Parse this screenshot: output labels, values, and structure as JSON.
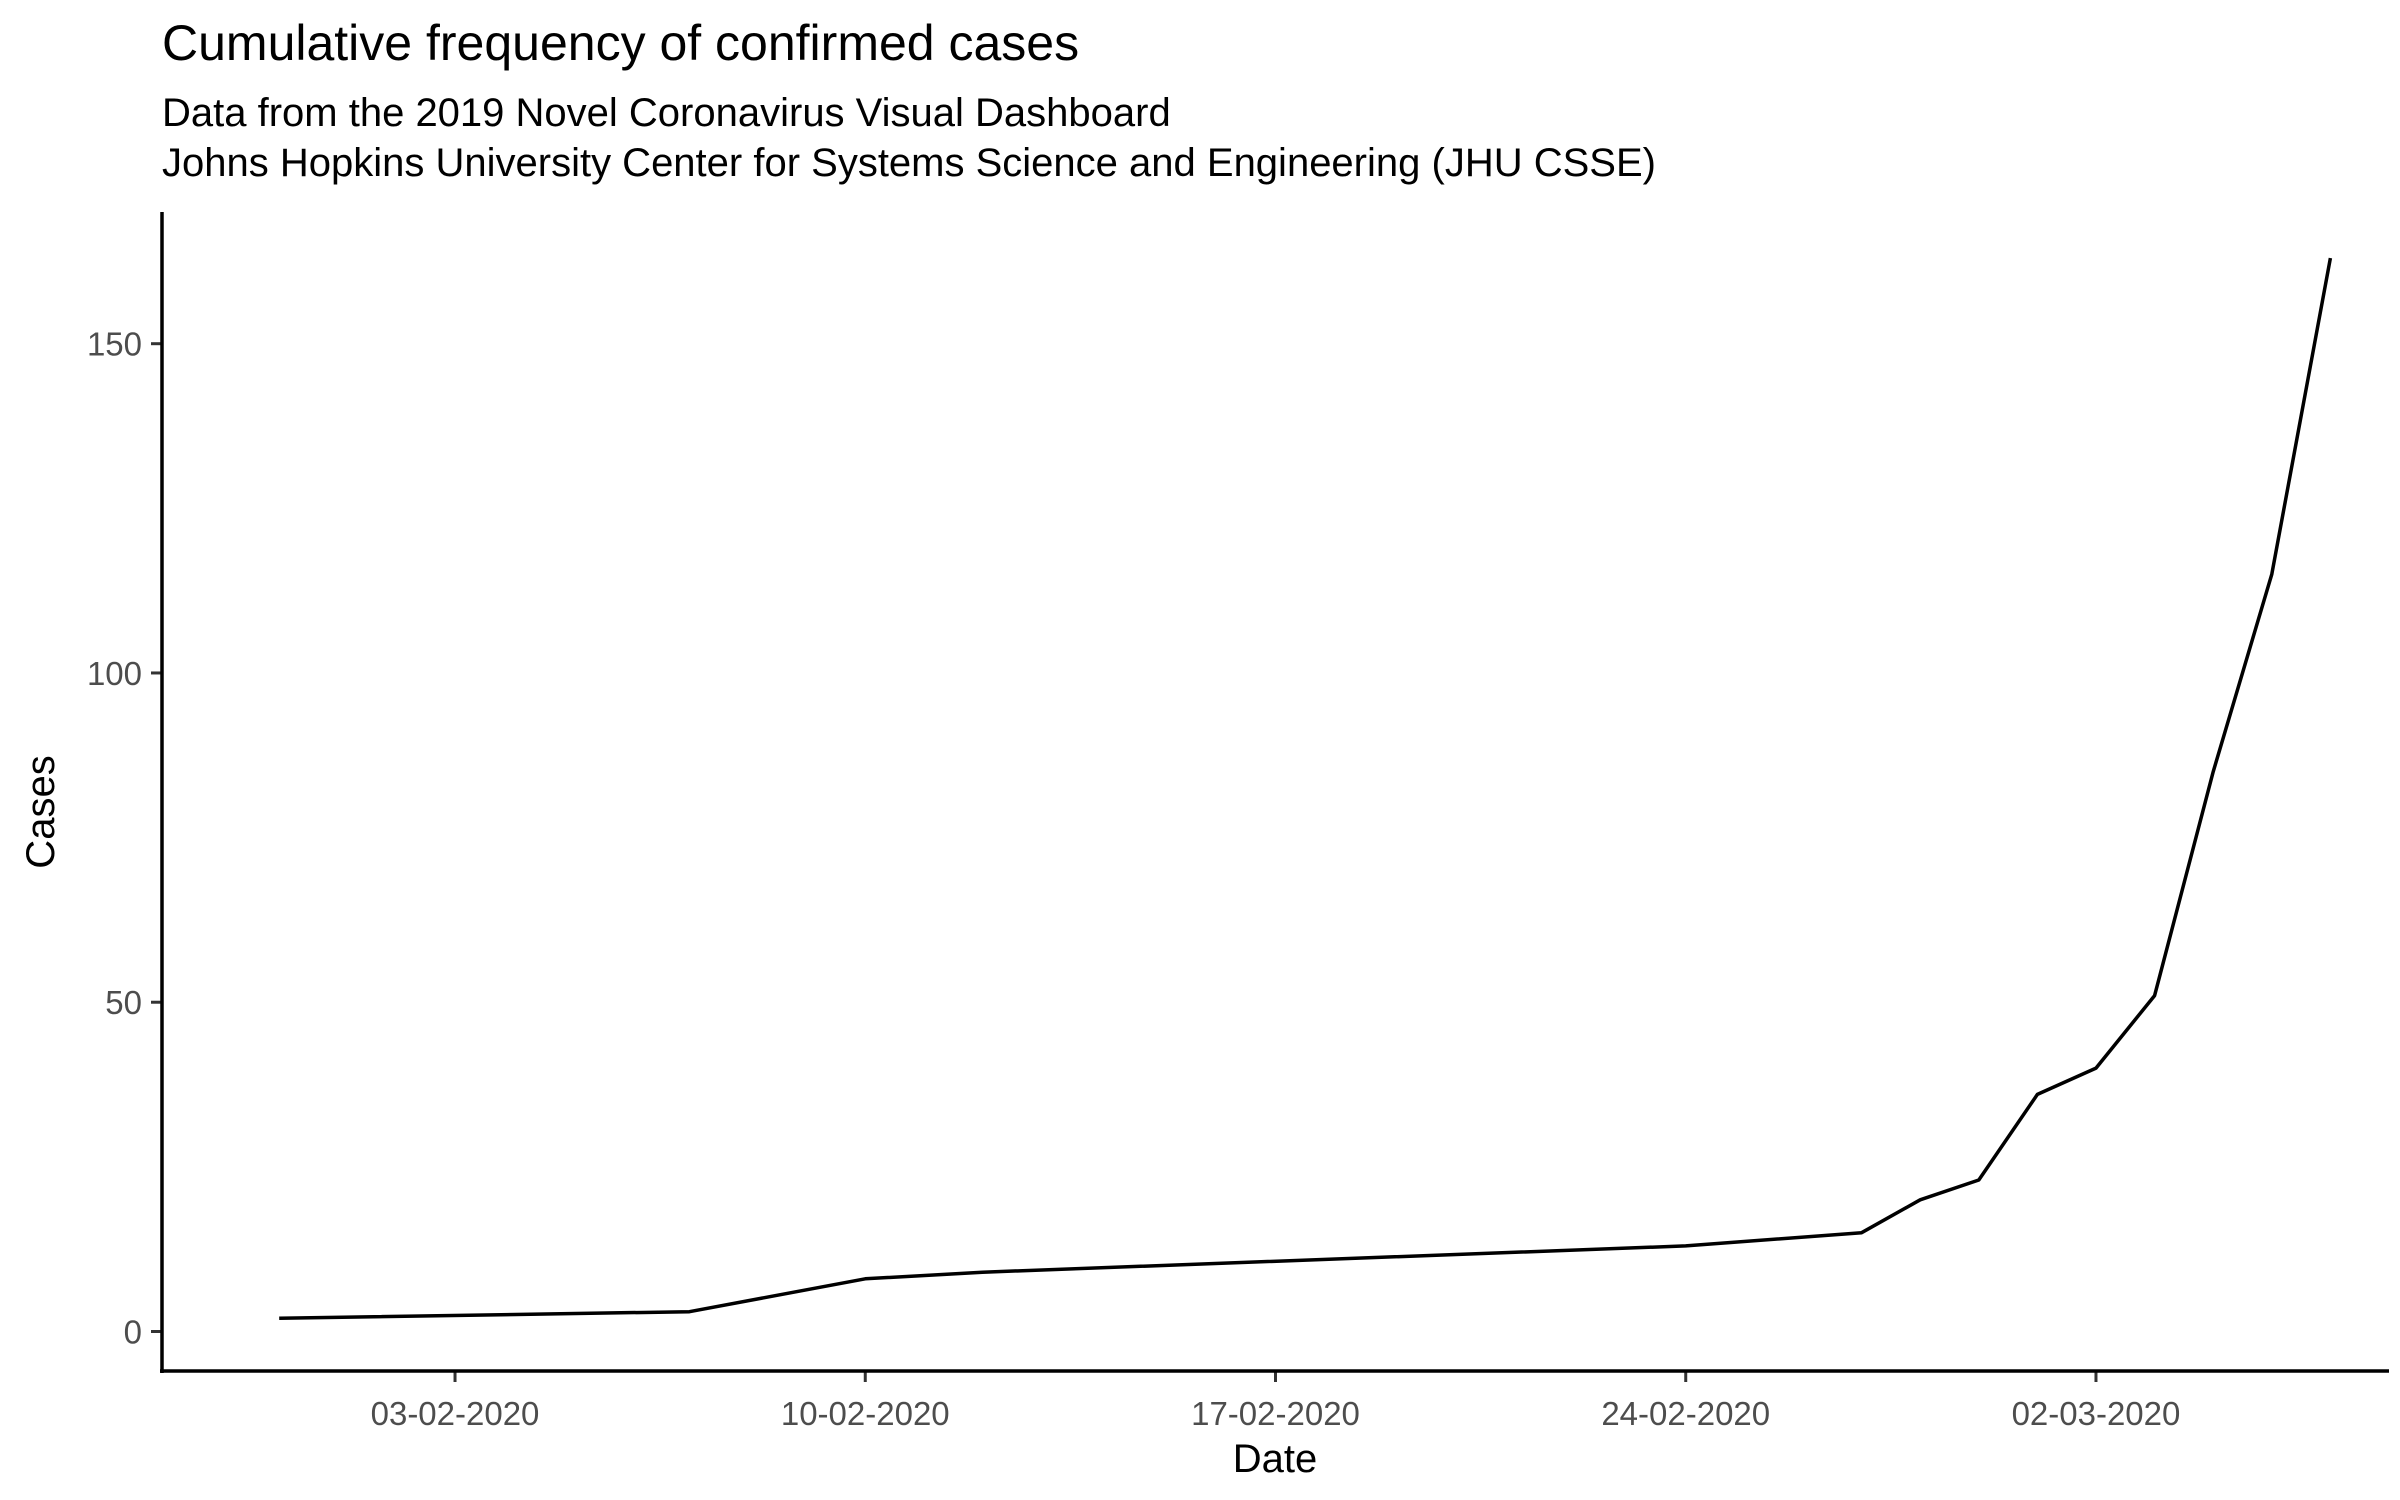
{
  "chart_data": {
    "type": "line",
    "title": "Cumulative frequency of confirmed cases",
    "subtitle": [
      "Data from the 2019 Novel Coronavirus Visual Dashboard",
      "Johns Hopkins University Center for Systems Science and Engineering (JHU CSSE)"
    ],
    "xlabel": "Date",
    "ylabel": "Cases",
    "xlim": [
      "2020-01-29",
      "2020-03-07"
    ],
    "ylim": [
      -6,
      170
    ],
    "x_ticks": [
      "2020-02-03",
      "2020-02-10",
      "2020-02-17",
      "2020-02-24",
      "2020-03-02"
    ],
    "x_tick_labels": [
      "03-02-2020",
      "10-02-2020",
      "17-02-2020",
      "24-02-2020",
      "02-03-2020"
    ],
    "y_ticks": [
      0,
      50,
      100,
      150
    ],
    "grid": false,
    "legend": "none",
    "series": [
      {
        "x": [
          "2020-01-31",
          "2020-02-07",
          "2020-02-10",
          "2020-02-12",
          "2020-02-24",
          "2020-02-27",
          "2020-02-28",
          "2020-02-29",
          "2020-03-01",
          "2020-03-02",
          "2020-03-03",
          "2020-03-04",
          "2020-03-05",
          "2020-03-06"
        ],
        "values": [
          2,
          3,
          8,
          9,
          13,
          15,
          20,
          23,
          36,
          40,
          51,
          85,
          115,
          163
        ],
        "color": "#000000"
      }
    ]
  }
}
